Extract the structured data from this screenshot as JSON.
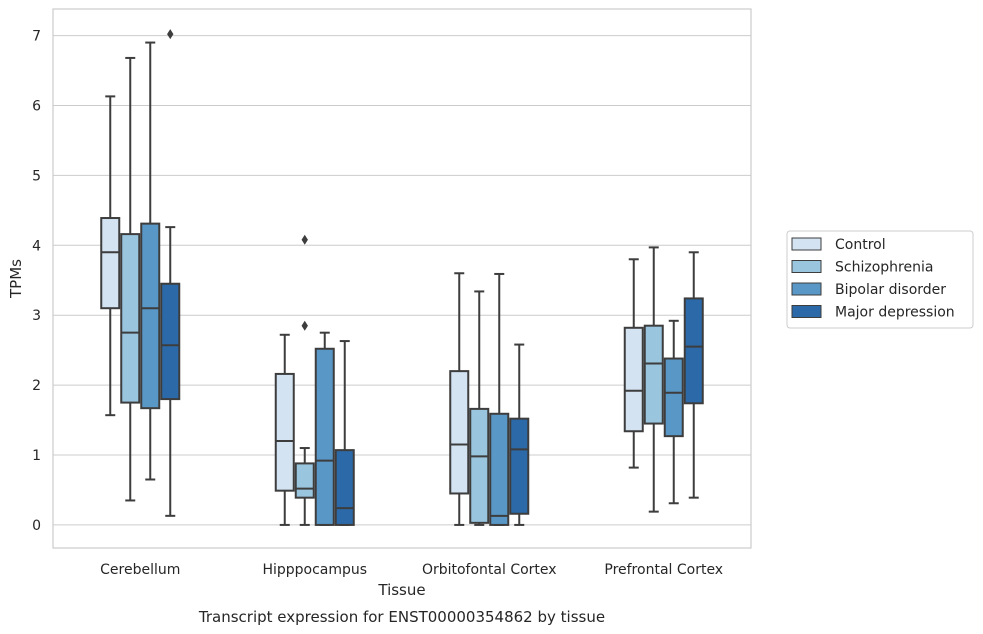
{
  "caption": "Transcript expression for ENST00000354862 by tissue",
  "chart_data": {
    "type": "box",
    "xlabel": "Tissue",
    "ylabel": "TPMs",
    "ylim": [
      -0.33,
      7.38
    ],
    "yticks": [
      0,
      1,
      2,
      3,
      4,
      5,
      6,
      7
    ],
    "grid": "horizontal",
    "legend_position": "right",
    "categories": [
      "Cerebellum",
      "Hipppocampus",
      "Orbitofontal Cortex",
      "Prefrontal Cortex"
    ],
    "series": [
      {
        "name": "Control",
        "color": "#d3e3f2",
        "boxes": [
          {
            "whisker_low": 1.57,
            "q1": 3.1,
            "median": 3.9,
            "q3": 4.39,
            "whisker_high": 6.13,
            "outliers": []
          },
          {
            "whisker_low": 0.0,
            "q1": 0.49,
            "median": 1.2,
            "q3": 2.16,
            "whisker_high": 2.72,
            "outliers": []
          },
          {
            "whisker_low": 0.0,
            "q1": 0.45,
            "median": 1.15,
            "q3": 2.2,
            "whisker_high": 3.6,
            "outliers": []
          },
          {
            "whisker_low": 0.82,
            "q1": 1.34,
            "median": 1.92,
            "q3": 2.82,
            "whisker_high": 3.8,
            "outliers": []
          }
        ]
      },
      {
        "name": "Schizophrenia",
        "color": "#9ac5df",
        "boxes": [
          {
            "whisker_low": 0.35,
            "q1": 1.75,
            "median": 2.75,
            "q3": 4.16,
            "whisker_high": 6.68,
            "outliers": []
          },
          {
            "whisker_low": 0.0,
            "q1": 0.39,
            "median": 0.52,
            "q3": 0.88,
            "whisker_high": 1.1,
            "outliers": [
              2.85,
              4.08
            ]
          },
          {
            "whisker_low": 0.0,
            "q1": 0.03,
            "median": 0.98,
            "q3": 1.66,
            "whisker_high": 3.34,
            "outliers": []
          },
          {
            "whisker_low": 0.19,
            "q1": 1.45,
            "median": 2.31,
            "q3": 2.85,
            "whisker_high": 3.97,
            "outliers": []
          }
        ]
      },
      {
        "name": "Bipolar disorder",
        "color": "#5897c6",
        "boxes": [
          {
            "whisker_low": 0.65,
            "q1": 1.67,
            "median": 3.1,
            "q3": 4.31,
            "whisker_high": 6.9,
            "outliers": []
          },
          {
            "whisker_low": 0.0,
            "q1": 0.0,
            "median": 0.92,
            "q3": 2.52,
            "whisker_high": 2.75,
            "outliers": []
          },
          {
            "whisker_low": 0.0,
            "q1": 0.0,
            "median": 0.13,
            "q3": 1.59,
            "whisker_high": 3.59,
            "outliers": []
          },
          {
            "whisker_low": 0.31,
            "q1": 1.27,
            "median": 1.89,
            "q3": 2.38,
            "whisker_high": 2.92,
            "outliers": []
          }
        ]
      },
      {
        "name": "Major depression",
        "color": "#2c69a8",
        "boxes": [
          {
            "whisker_low": 0.13,
            "q1": 1.8,
            "median": 2.57,
            "q3": 3.45,
            "whisker_high": 4.26,
            "outliers": [
              7.02
            ]
          },
          {
            "whisker_low": 0.0,
            "q1": 0.0,
            "median": 0.24,
            "q3": 1.07,
            "whisker_high": 2.63,
            "outliers": []
          },
          {
            "whisker_low": 0.0,
            "q1": 0.16,
            "median": 1.08,
            "q3": 1.52,
            "whisker_high": 2.58,
            "outliers": []
          },
          {
            "whisker_low": 0.39,
            "q1": 1.74,
            "median": 2.55,
            "q3": 3.24,
            "whisker_high": 3.9,
            "outliers": []
          }
        ]
      }
    ]
  }
}
